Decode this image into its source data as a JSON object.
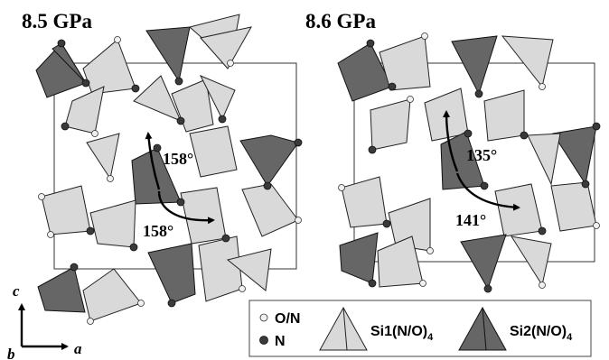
{
  "panels": [
    {
      "title": "8.5 GPa",
      "angle_upper": "158°",
      "angle_lower": "158°"
    },
    {
      "title": "8.6 GPa",
      "angle_upper": "135°",
      "angle_lower": "141°"
    }
  ],
  "axes": {
    "c": "c",
    "a": "a",
    "b": "b"
  },
  "legend": {
    "on_label": "O/N",
    "n_label": "N",
    "si1_label": "Si1(N/O)",
    "si1_sub": "4",
    "si2_label": "Si2(N/O)",
    "si2_sub": "4"
  },
  "colors": {
    "light_tetrahedron": "#d9d9d9",
    "dark_tetrahedron": "#666666",
    "nitrogen": "#3a3a3a",
    "oxygen_nitrogen": "#f0f0f0"
  }
}
